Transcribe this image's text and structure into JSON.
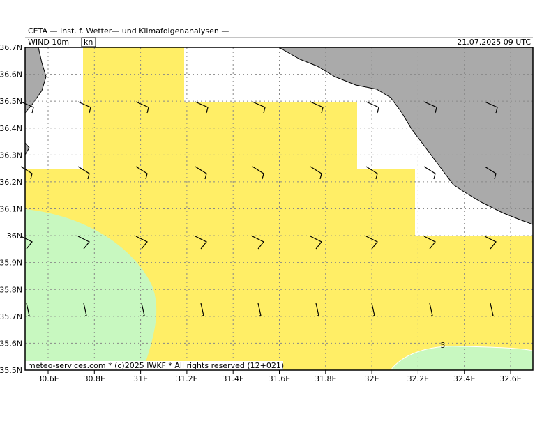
{
  "header": {
    "title": "CETA — Inst. f. Wetter— und Klimafolgenanalysen —",
    "field": "WIND 10m",
    "unit": "kn",
    "valid_time": "21.07.2025 09 UTC"
  },
  "map": {
    "lon_labels": [
      "30.6E",
      "30.8E",
      "31E",
      "31.2E",
      "31.4E",
      "31.6E",
      "31.8E",
      "32E",
      "32.2E",
      "32.4E",
      "32.6E"
    ],
    "lat_labels": [
      "36.7N",
      "36.6N",
      "36.5N",
      "36.4N",
      "36.3N",
      "36.2N",
      "36.1N",
      "36N",
      "35.9N",
      "35.8N",
      "35.7N",
      "35.6N",
      "35.5N"
    ],
    "contour_label": "5"
  },
  "footer": "meteo-services.com * (c)2025 IWKF * All rights reserved (12+021)"
}
